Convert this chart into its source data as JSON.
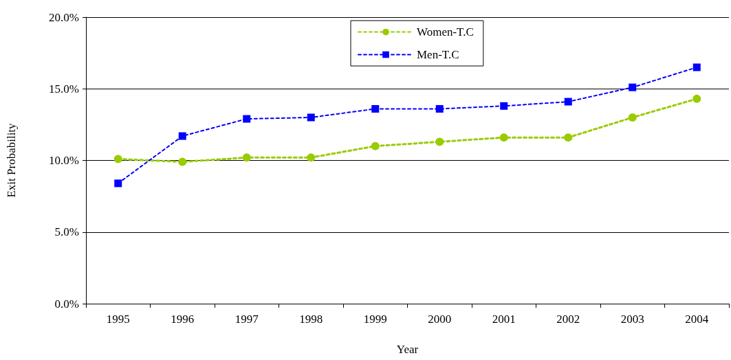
{
  "chart_data": {
    "type": "line",
    "xlabel": "Year",
    "ylabel": "Exit Probability",
    "categories": [
      "1995",
      "1996",
      "1997",
      "1998",
      "1999",
      "2000",
      "2001",
      "2002",
      "2003",
      "2004"
    ],
    "series": [
      {
        "name": "Women-T.C",
        "color": "#99cc00",
        "marker": "circle",
        "values": [
          10.1,
          9.9,
          10.2,
          10.2,
          11.0,
          11.3,
          11.6,
          11.6,
          13.0,
          14.3
        ]
      },
      {
        "name": "Men-T.C",
        "color": "#0000ff",
        "marker": "square",
        "values": [
          8.4,
          11.7,
          12.9,
          13.0,
          13.6,
          13.6,
          13.8,
          14.1,
          15.1,
          16.5
        ]
      }
    ],
    "ylim": [
      0,
      20
    ],
    "yticks": [
      {
        "value": 0,
        "label": "0.0%"
      },
      {
        "value": 5,
        "label": "5.0%"
      },
      {
        "value": 10,
        "label": "10.0%"
      },
      {
        "value": 15,
        "label": "15.0%"
      },
      {
        "value": 20,
        "label": "20.0%"
      }
    ],
    "grid": "y",
    "legend": "top",
    "line_style": "dashed"
  }
}
